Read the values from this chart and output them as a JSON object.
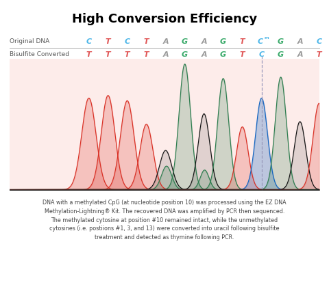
{
  "title": "High Conversion Efficiency",
  "original_dna": [
    "C",
    "T",
    "C",
    "T",
    "A",
    "G",
    "A",
    "G",
    "T",
    "Cm",
    "G",
    "A",
    "C"
  ],
  "bisulfite_dna": [
    "T",
    "T",
    "T",
    "T",
    "A",
    "G",
    "A",
    "G",
    "T",
    "C",
    "G",
    "A",
    "T"
  ],
  "orig_colors": [
    "#4db6e8",
    "#e05555",
    "#4db6e8",
    "#e05555",
    "#999999",
    "#3aaa6a",
    "#999999",
    "#3aaa6a",
    "#e05555",
    "#4db6e8",
    "#3aaa6a",
    "#999999",
    "#4db6e8"
  ],
  "bis_colors": [
    "#e05555",
    "#e05555",
    "#e05555",
    "#e05555",
    "#999999",
    "#3aaa6a",
    "#999999",
    "#3aaa6a",
    "#e05555",
    "#4db6e8",
    "#3aaa6a",
    "#999999",
    "#e05555"
  ],
  "footer_text": "DNA with a methylated CpG (at nucleotide position 10) was processed using the EZ DNA\nMethylation-Lightning® Kit. The recovered DNA was amplified by PCR then sequenced.\nThe methylated cytosine at position #10 remained intact, while the unmethylated\ncytosines (i.e. postiions #1, 3, and 13) were converted into uracil following bisulfite\ntreatment and detected as thymine following PCR.",
  "peak_bg_color": "#FDECEA",
  "dashed_line_color": "#9999BB",
  "baseline_color": "#222222",
  "fig_width": 4.8,
  "fig_height": 4.2,
  "dpi": 100
}
